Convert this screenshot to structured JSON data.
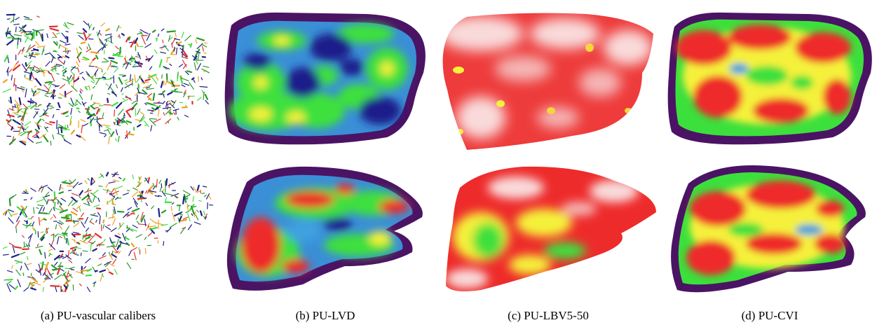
{
  "captions": {
    "a": "(a) PU-vascular calibers",
    "b": "(b) PU-LVD",
    "c": "(c) PU-LBV5-50",
    "d": "(d) PU-CVI"
  },
  "colors": {
    "background": "#ffffff",
    "border": "#4b1364",
    "low": "#1f1f8a",
    "mid_low": "#3fa0e0",
    "mid": "#3ce03c",
    "mid_high": "#f5f13a",
    "high": "#ee2b2b",
    "highest": "#f7d0d0"
  }
}
